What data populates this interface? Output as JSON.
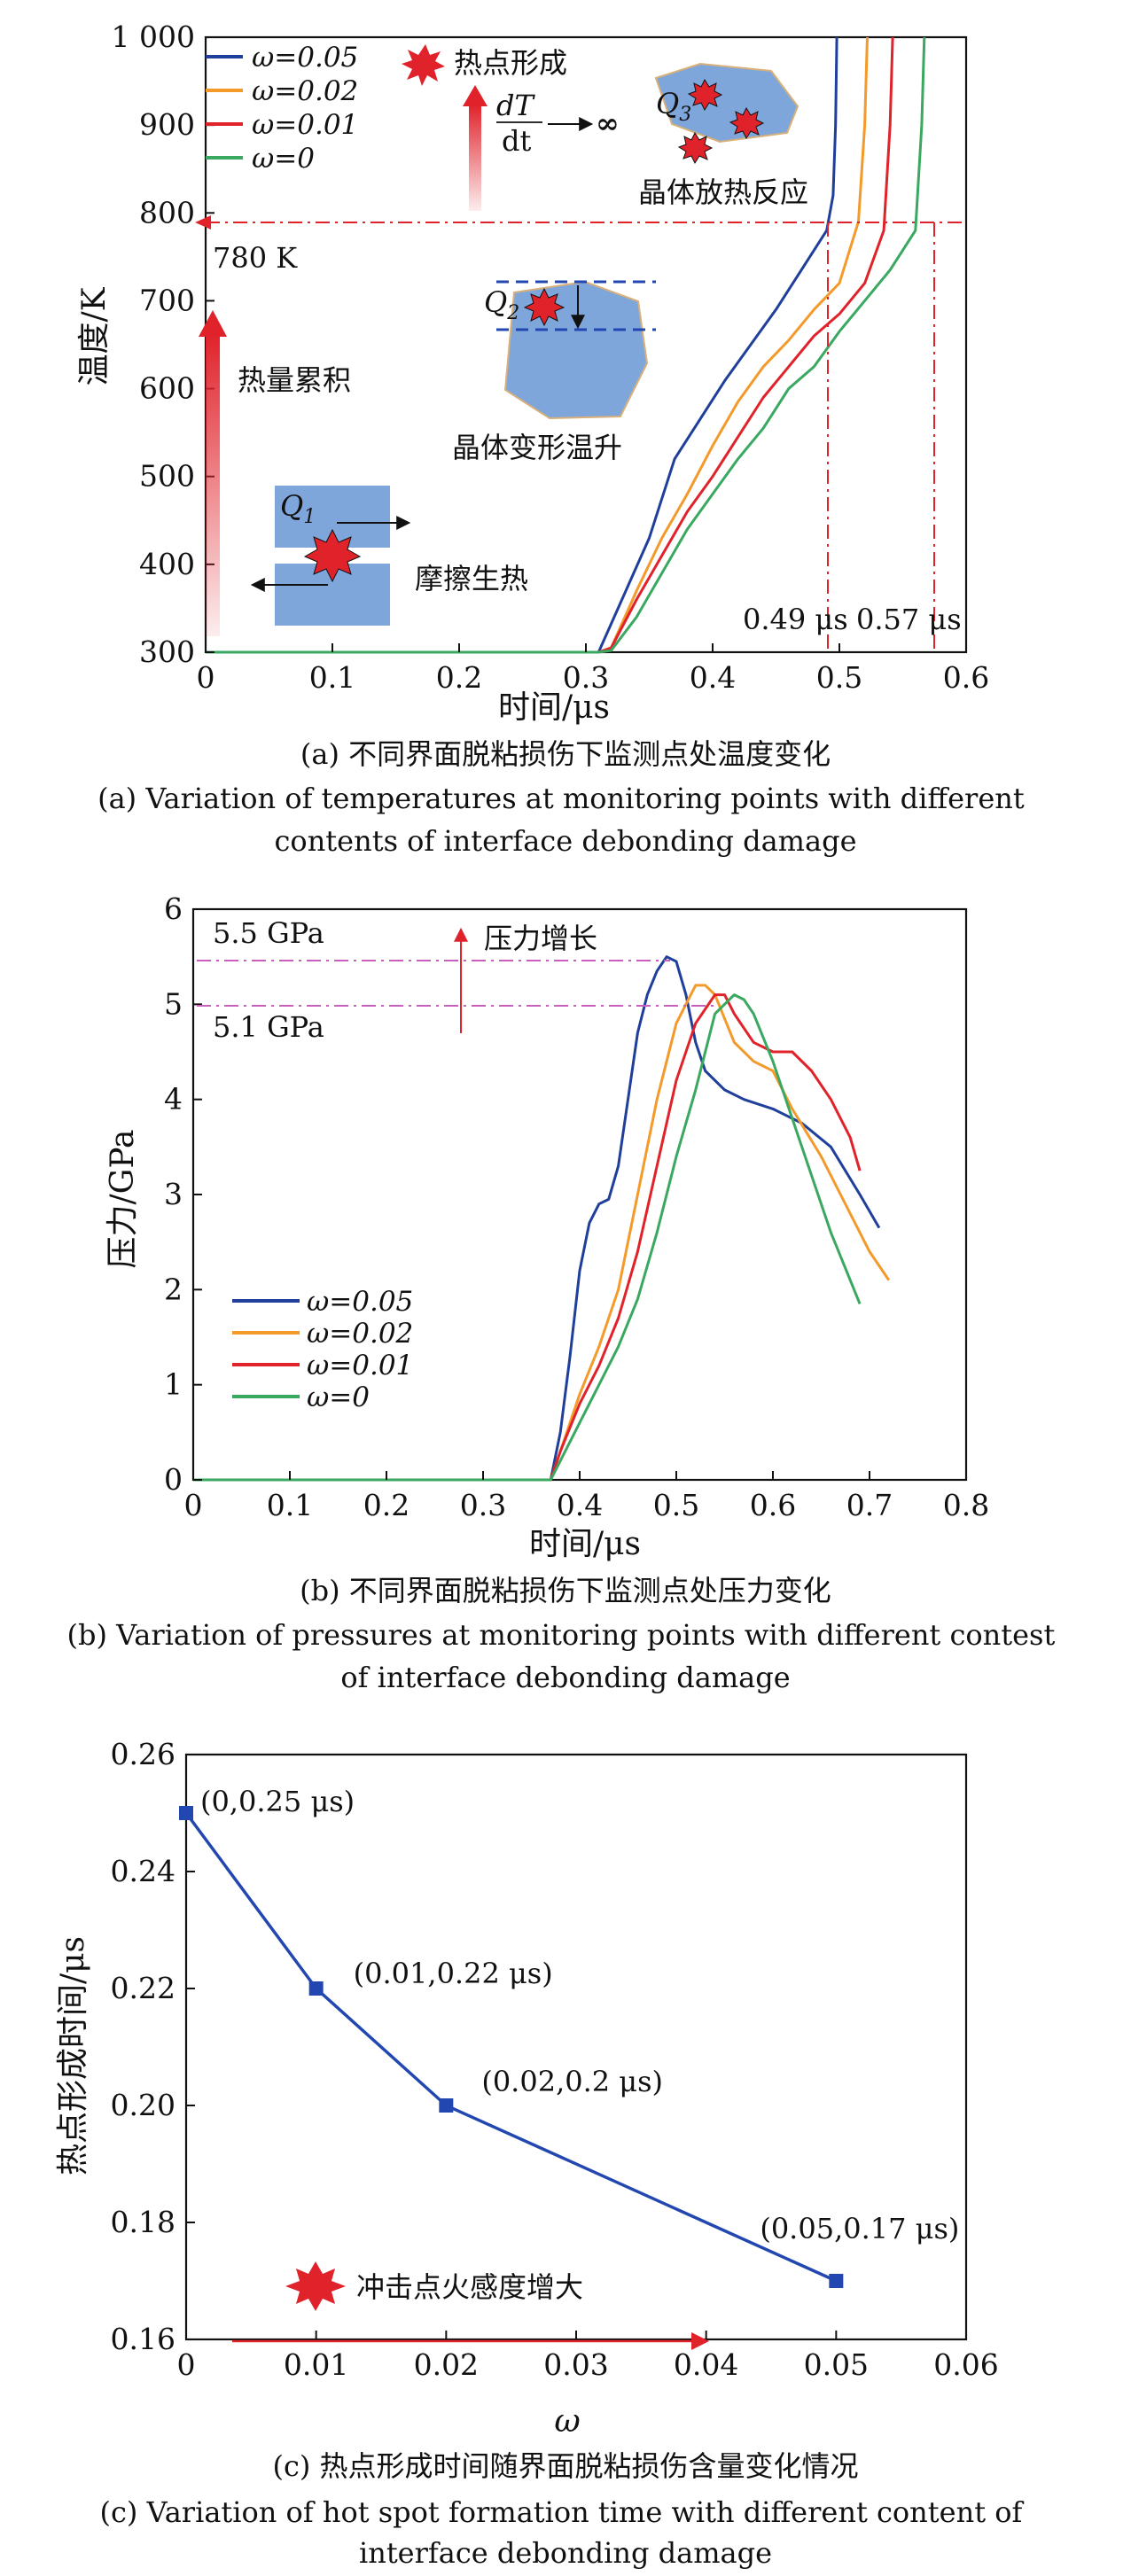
{
  "colors": {
    "w005": "#1f3f9a",
    "w002": "#f39a2b",
    "w001": "#e0232b",
    "w0": "#3aa860",
    "blob": "#7fa6da",
    "blob_edge": "#d8b07a",
    "guide_red": "#e0232b",
    "guide_pink": "#c85fbf",
    "arrow": "#e0232b",
    "line_c": "#2347b0"
  },
  "chart_data": [
    {
      "type": "line",
      "title": "(a) 不同界面脱粘损伤下监测点处温度变化",
      "subtitle": "(a) Variation of temperatures at monitoring points with different contents of interface debonding damage",
      "xlabel": "时间/μs",
      "ylabel": "温度/K",
      "xlim": [
        0,
        0.6
      ],
      "ylim": [
        300,
        1000
      ],
      "xticks": [
        "0",
        "0.1",
        "0.2",
        "0.3",
        "0.4",
        "0.5",
        "0.6"
      ],
      "yticks": [
        "300",
        "400",
        "500",
        "600",
        "700",
        "800",
        "900",
        "1 000"
      ],
      "legend_position": "top-left",
      "series": [
        {
          "name": "ω=0.05",
          "color_key": "w005",
          "x": [
            0,
            0.305,
            0.31,
            0.33,
            0.35,
            0.37,
            0.39,
            0.41,
            0.43,
            0.45,
            0.47,
            0.49,
            0.495,
            0.497,
            0.498
          ],
          "y": [
            300,
            300,
            300,
            365,
            430,
            520,
            565,
            610,
            650,
            690,
            735,
            780,
            820,
            900,
            1000
          ]
        },
        {
          "name": "ω=0.02",
          "color_key": "w002",
          "x": [
            0,
            0.31,
            0.32,
            0.34,
            0.36,
            0.38,
            0.4,
            0.42,
            0.44,
            0.46,
            0.48,
            0.5,
            0.515,
            0.52,
            0.522
          ],
          "y": [
            300,
            300,
            305,
            370,
            430,
            480,
            535,
            585,
            625,
            655,
            690,
            720,
            790,
            900,
            1000
          ]
        },
        {
          "name": "ω=0.01",
          "color_key": "w001",
          "x": [
            0,
            0.31,
            0.32,
            0.34,
            0.36,
            0.38,
            0.4,
            0.42,
            0.44,
            0.46,
            0.48,
            0.5,
            0.52,
            0.535,
            0.54,
            0.542
          ],
          "y": [
            300,
            300,
            305,
            360,
            410,
            460,
            500,
            545,
            590,
            625,
            660,
            685,
            720,
            780,
            900,
            1000
          ]
        },
        {
          "name": "ω=0",
          "color_key": "w0",
          "x": [
            0,
            0.31,
            0.32,
            0.34,
            0.36,
            0.38,
            0.4,
            0.42,
            0.44,
            0.46,
            0.48,
            0.5,
            0.52,
            0.54,
            0.56,
            0.565,
            0.567
          ],
          "y": [
            300,
            300,
            302,
            340,
            390,
            440,
            480,
            520,
            555,
            600,
            625,
            665,
            700,
            735,
            780,
            900,
            1000
          ]
        }
      ],
      "annotations": {
        "temp_line": "780 K",
        "t1": "0.49 μs",
        "t2": "0.57 μs",
        "heat_acc": "热量累积",
        "friction": "摩擦生热",
        "deform": "晶体变形温升",
        "exo": "晶体放热反应",
        "hotspot": "热点形成",
        "q1": "Q",
        "q1s": "1",
        "q2": "Q",
        "q2s": "2",
        "q3": "Q",
        "q3s": "3",
        "dT": "dT",
        "dt": "dt",
        "inf": "∞"
      }
    },
    {
      "type": "line",
      "title": "(b) 不同界面脱粘损伤下监测点处压力变化",
      "subtitle": "(b) Variation of pressures at monitoring points with different contest of interface debonding damage",
      "xlabel": "时间/μs",
      "ylabel": "压力/GPa",
      "xlim": [
        0,
        0.8
      ],
      "ylim": [
        0,
        6
      ],
      "xticks": [
        "0",
        "0.1",
        "0.2",
        "0.3",
        "0.4",
        "0.5",
        "0.6",
        "0.7",
        "0.8"
      ],
      "yticks": [
        "0",
        "1",
        "2",
        "3",
        "4",
        "5",
        "6"
      ],
      "legend_position": "bottom-left",
      "series": [
        {
          "name": "ω=0.05",
          "color_key": "w005",
          "x": [
            0,
            0.37,
            0.38,
            0.39,
            0.4,
            0.41,
            0.42,
            0.43,
            0.44,
            0.45,
            0.46,
            0.47,
            0.48,
            0.49,
            0.5,
            0.51,
            0.52,
            0.53,
            0.55,
            0.57,
            0.6,
            0.63,
            0.66,
            0.69,
            0.71
          ],
          "y": [
            0,
            0,
            0.5,
            1.3,
            2.2,
            2.7,
            2.9,
            2.95,
            3.3,
            4.0,
            4.7,
            5.1,
            5.35,
            5.5,
            5.45,
            5.1,
            4.6,
            4.3,
            4.1,
            4.0,
            3.9,
            3.75,
            3.5,
            3.0,
            2.65
          ]
        },
        {
          "name": "ω=0.02",
          "color_key": "w002",
          "x": [
            0,
            0.37,
            0.38,
            0.4,
            0.42,
            0.44,
            0.46,
            0.48,
            0.5,
            0.52,
            0.53,
            0.54,
            0.56,
            0.58,
            0.6,
            0.62,
            0.65,
            0.68,
            0.7,
            0.72
          ],
          "y": [
            0,
            0,
            0.3,
            0.9,
            1.4,
            2.0,
            3.0,
            4.0,
            4.8,
            5.2,
            5.2,
            5.1,
            4.6,
            4.4,
            4.3,
            3.9,
            3.4,
            2.8,
            2.4,
            2.1
          ]
        },
        {
          "name": "ω=0.01",
          "color_key": "w001",
          "x": [
            0,
            0.37,
            0.38,
            0.4,
            0.42,
            0.44,
            0.46,
            0.48,
            0.5,
            0.52,
            0.54,
            0.55,
            0.56,
            0.58,
            0.6,
            0.62,
            0.64,
            0.66,
            0.68,
            0.69
          ],
          "y": [
            0,
            0,
            0.3,
            0.8,
            1.2,
            1.7,
            2.4,
            3.3,
            4.2,
            4.8,
            5.1,
            5.1,
            4.9,
            4.6,
            4.5,
            4.5,
            4.3,
            4.0,
            3.6,
            3.25
          ]
        },
        {
          "name": "ω=0",
          "color_key": "w0",
          "x": [
            0,
            0.37,
            0.38,
            0.4,
            0.42,
            0.44,
            0.46,
            0.48,
            0.5,
            0.52,
            0.54,
            0.56,
            0.57,
            0.58,
            0.6,
            0.62,
            0.64,
            0.66,
            0.68,
            0.69
          ],
          "y": [
            0,
            0,
            0.2,
            0.6,
            1.0,
            1.4,
            1.9,
            2.6,
            3.4,
            4.1,
            4.9,
            5.1,
            5.05,
            4.9,
            4.4,
            3.8,
            3.2,
            2.6,
            2.1,
            1.85
          ]
        }
      ],
      "annotations": {
        "p1": "5.5 GPa",
        "p2": "5.1 GPa",
        "rise": "压力增长"
      }
    },
    {
      "type": "line",
      "title": "(c) 热点形成时间随界面脱粘损伤含量变化情况",
      "subtitle": "(c) Variation of hot spot formation time with different content of interface debonding damage",
      "xlabel": "ω",
      "ylabel": "热点形成时间/μs",
      "xlim": [
        0,
        0.06
      ],
      "ylim": [
        0.16,
        0.26
      ],
      "xticks": [
        "0",
        "0.01",
        "0.02",
        "0.03",
        "0.04",
        "0.05",
        "0.06"
      ],
      "yticks": [
        "0.16",
        "0.18",
        "0.20",
        "0.22",
        "0.24",
        "0.26"
      ],
      "series": [
        {
          "x": [
            0,
            0.01,
            0.02,
            0.05
          ],
          "y": [
            0.25,
            0.22,
            0.2,
            0.17
          ]
        }
      ],
      "point_labels": [
        "(0,0.25 μs)",
        "(0.01,0.22 μs)",
        "(0.02,0.2 μs)",
        "(0.05,0.17 μs)"
      ],
      "annotations": {
        "sens": "冲击点火感度增大"
      }
    }
  ]
}
